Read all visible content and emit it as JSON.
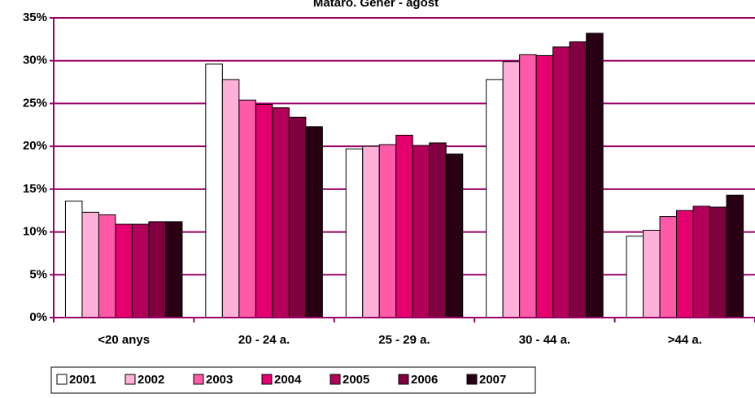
{
  "chart_data": {
    "type": "bar",
    "title": "Mataró. Gener - agost",
    "categories": [
      "<20 anys",
      "20 - 24 a.",
      "25 - 29 a.",
      "30 - 44 a.",
      ">44 a."
    ],
    "series": [
      {
        "name": "2001",
        "color": "#ffffff",
        "values": [
          13.6,
          29.6,
          19.7,
          27.8,
          9.5
        ]
      },
      {
        "name": "2002",
        "color": "#ffb0d8",
        "values": [
          12.3,
          27.8,
          20.0,
          29.9,
          10.2
        ]
      },
      {
        "name": "2003",
        "color": "#ff5aa8",
        "values": [
          12.0,
          25.4,
          20.2,
          30.7,
          11.8
        ]
      },
      {
        "name": "2004",
        "color": "#e6006f",
        "values": [
          10.9,
          24.9,
          21.3,
          30.6,
          12.5
        ]
      },
      {
        "name": "2005",
        "color": "#b3005a",
        "values": [
          10.9,
          24.5,
          20.1,
          31.6,
          13.0
        ]
      },
      {
        "name": "2006",
        "color": "#800040",
        "values": [
          11.2,
          23.4,
          20.4,
          32.2,
          12.9
        ]
      },
      {
        "name": "2007",
        "color": "#2a0014",
        "values": [
          11.2,
          22.3,
          19.1,
          33.2,
          14.3
        ]
      }
    ],
    "ylim": [
      0,
      35
    ],
    "yticks": [
      {
        "value": 0,
        "label": "0%"
      },
      {
        "value": 5,
        "label": "5%"
      },
      {
        "value": 10,
        "label": "10%"
      },
      {
        "value": 15,
        "label": "15%"
      },
      {
        "value": 20,
        "label": "20%"
      },
      {
        "value": 25,
        "label": "25%"
      },
      {
        "value": 30,
        "label": "30%"
      },
      {
        "value": 35,
        "label": "35%"
      }
    ],
    "grid": true
  }
}
